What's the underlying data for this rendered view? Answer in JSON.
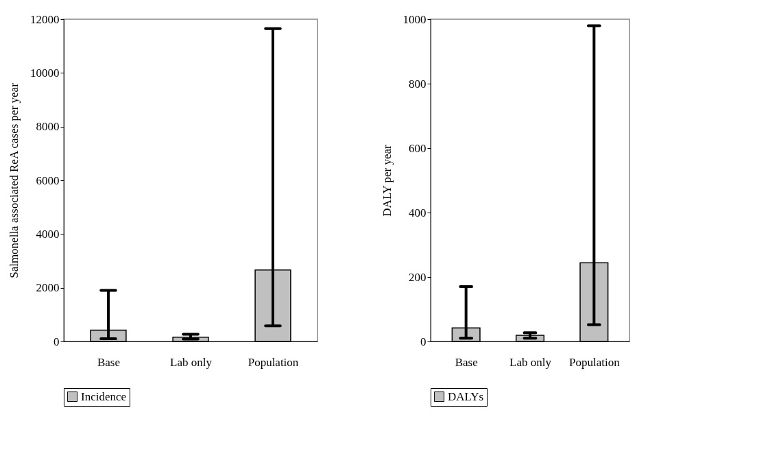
{
  "chart_data": [
    {
      "type": "bar",
      "ylabel": "Salmonella associated ReA cases per year",
      "categories": [
        "Base",
        "Lab only",
        "Population"
      ],
      "ylim": [
        0,
        12000
      ],
      "yticks": [
        0,
        2000,
        4000,
        6000,
        8000,
        10000,
        12000
      ],
      "grid": false,
      "legend": "bottom",
      "series": [
        {
          "name": "Incidence",
          "color": "#c0c0c0",
          "values": [
            420,
            160,
            2660
          ],
          "errors": [
            [
              100,
              1900
            ],
            [
              90,
              270
            ],
            [
              580,
              11650
            ]
          ]
        }
      ]
    },
    {
      "type": "bar",
      "ylabel": "DALY per year",
      "categories": [
        "Base",
        "Lab only",
        "Population"
      ],
      "ylim": [
        0,
        1000
      ],
      "yticks": [
        0,
        200,
        400,
        600,
        800,
        1000
      ],
      "grid": false,
      "legend": "bottom",
      "series": [
        {
          "name": "DALYs",
          "color": "#c0c0c0",
          "values": [
            42,
            19,
            244
          ],
          "errors": [
            [
              10,
              170
            ],
            [
              10,
              27
            ],
            [
              52,
              980
            ]
          ]
        }
      ]
    }
  ]
}
